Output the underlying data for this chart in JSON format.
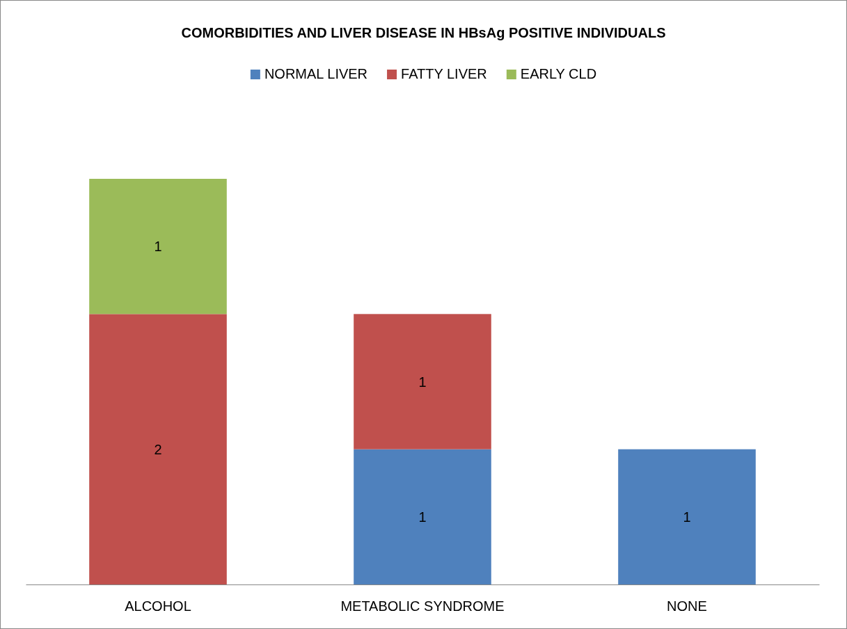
{
  "chart_data": {
    "type": "bar",
    "title": "COMORBIDITIES AND LIVER DISEASE IN HBsAg POSITIVE INDIVIDUALS",
    "categories": [
      "ALCOHOL",
      "METABOLIC SYNDROME",
      "NONE"
    ],
    "stacked": true,
    "data_labels": true,
    "legend": "top",
    "tick_labels": "x",
    "series": [
      {
        "name": "NORMAL LIVER",
        "color": "#4f81bd",
        "values": [
          null,
          1,
          1
        ]
      },
      {
        "name": "FATTY LIVER",
        "color": "#c0504d",
        "values": [
          2,
          1,
          null
        ]
      },
      {
        "name": "EARLY CLD",
        "color": "#9bbb59",
        "values": [
          1,
          null,
          null
        ]
      }
    ]
  }
}
